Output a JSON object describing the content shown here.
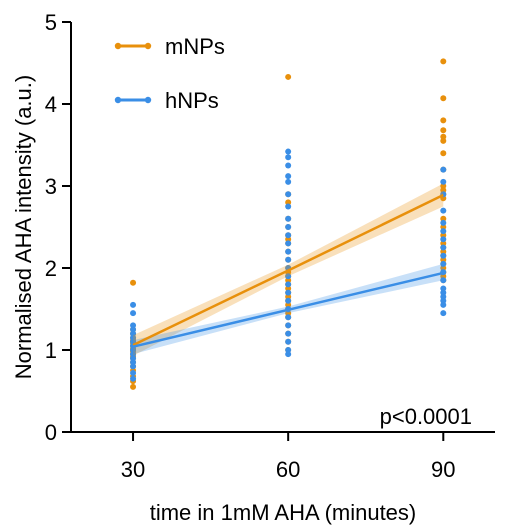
{
  "chart_data": {
    "type": "scatter",
    "x_label": "time in 1mM AHA (minutes)",
    "y_label": "Normalised AHA intensity (a.u.)",
    "annotation": "p<0.0001",
    "xlim": [
      18,
      100
    ],
    "ylim": [
      0,
      5
    ],
    "xticks": [
      30,
      60,
      90
    ],
    "yticks": [
      0,
      1,
      2,
      3,
      4,
      5
    ],
    "legend": "top-left",
    "series": [
      {
        "name": "mNPs",
        "color": "#e8900c",
        "groups": [
          {
            "x": 30,
            "values": [
              1.82,
              1.25,
              1.2,
              1.15,
              1.12,
              1.1,
              1.08,
              1.05,
              1.02,
              1.0,
              0.98,
              0.95,
              0.92,
              0.9,
              0.85,
              0.8,
              0.75,
              0.68,
              0.62,
              0.55
            ]
          },
          {
            "x": 60,
            "values": [
              4.33,
              2.9,
              2.8,
              2.6,
              2.5,
              2.4,
              2.35,
              2.3,
              2.2,
              2.1,
              2.0,
              1.95,
              1.9,
              1.85,
              1.8,
              1.75,
              1.7,
              1.65,
              1.6,
              1.55,
              1.5,
              1.45,
              1.4,
              1.3,
              1.2,
              1.1,
              1.0
            ]
          },
          {
            "x": 90,
            "values": [
              4.52,
              4.07,
              3.8,
              3.68,
              3.6,
              3.55,
              3.4,
              3.2,
              3.0,
              2.95,
              2.9,
              2.85,
              2.6,
              2.5,
              2.4,
              2.3,
              2.25,
              2.2,
              2.15,
              2.1,
              2.05,
              2.0,
              1.95,
              1.9,
              1.85
            ]
          }
        ],
        "fit": {
          "x": [
            30,
            60,
            90
          ],
          "values": [
            1.06,
            1.97,
            2.89
          ],
          "lower": [
            0.93,
            1.9,
            2.75
          ],
          "upper": [
            1.18,
            2.04,
            3.03
          ]
        }
      },
      {
        "name": "hNPs",
        "color": "#3a8ee6",
        "groups": [
          {
            "x": 30,
            "values": [
              1.55,
              1.45,
              1.3,
              1.25,
              1.2,
              1.15,
              1.1,
              1.05,
              1.0,
              0.95,
              0.9,
              0.85,
              0.8,
              0.72,
              0.65
            ]
          },
          {
            "x": 60,
            "values": [
              3.42,
              3.35,
              3.25,
              3.12,
              3.05,
              2.9,
              2.75,
              2.6,
              2.5,
              2.4,
              2.3,
              2.2,
              2.1,
              2.0,
              1.9,
              1.8,
              1.7,
              1.6,
              1.5,
              1.4,
              1.3,
              1.2,
              1.1,
              1.0,
              0.95
            ]
          },
          {
            "x": 90,
            "values": [
              3.2,
              3.05,
              2.9,
              2.7,
              2.55,
              2.45,
              2.35,
              2.25,
              2.15,
              2.05,
              1.95,
              1.85,
              1.75,
              1.7,
              1.65,
              1.6,
              1.55,
              1.45
            ]
          }
        ],
        "fit": {
          "x": [
            30,
            60,
            90
          ],
          "values": [
            1.04,
            1.49,
            1.94
          ],
          "lower": [
            0.95,
            1.45,
            1.85
          ],
          "upper": [
            1.12,
            1.53,
            2.05
          ]
        }
      }
    ]
  }
}
